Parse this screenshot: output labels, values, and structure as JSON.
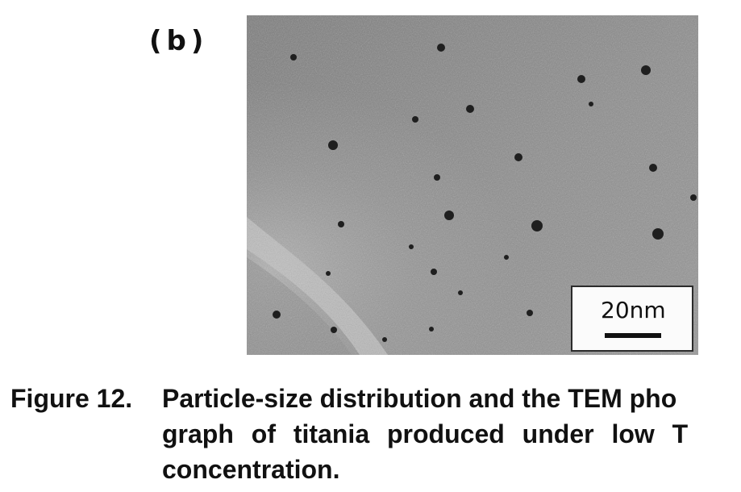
{
  "figure": {
    "panel_label": "(b)",
    "scale_bar_label": "20nm",
    "caption": {
      "label": "Figure 12.",
      "lines": [
        "Particle-size distribution and the TEM pho",
        "graph of titania produced under low T",
        "concentration."
      ]
    }
  },
  "colors": {
    "background": "#ffffff",
    "micrograph_gray": "#8f8f8f",
    "particle_dark": "#1f1f1f",
    "text": "#111111"
  }
}
